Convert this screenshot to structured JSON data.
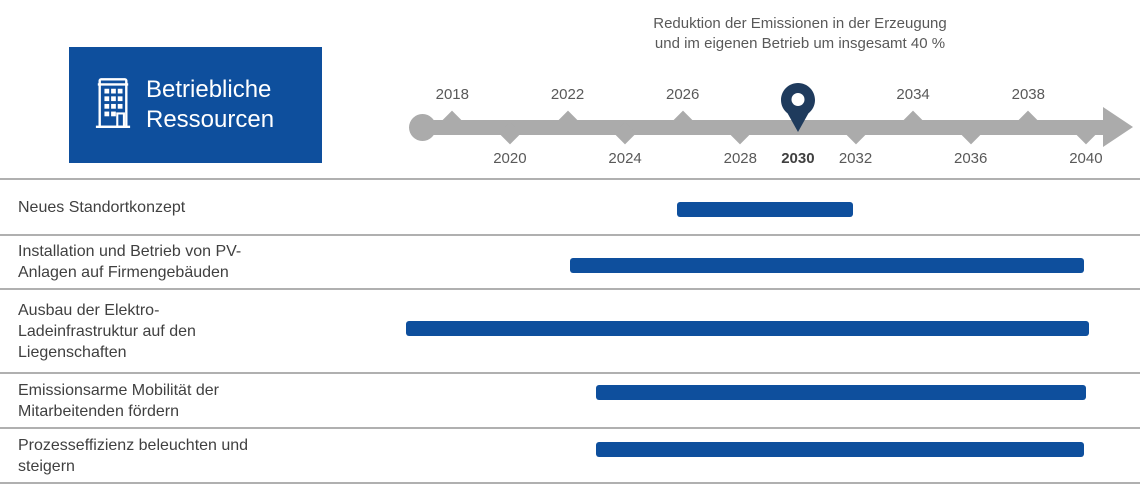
{
  "header": {
    "category_label": "Betriebliche\nRessourcen",
    "annotation": "Reduktion der Emissionen in der Erzeugung\nund im eigenen Betrieb um insgesamt 40 %"
  },
  "colors": {
    "blue": "#0e4f9d",
    "pin_navy": "#1f3b5d",
    "timeline_gray": "#ababab",
    "label_dark": "#404040",
    "year_gray": "#595959",
    "divider_gray": "#b0b0b0",
    "white": "#ffffff"
  },
  "chart_data": {
    "type": "gantt",
    "title": "Betriebliche Ressourcen",
    "annotation": "Reduktion der Emissionen in der Erzeugung und im eigenen Betrieb um insgesamt 40 %",
    "annotation_year": 2030,
    "axis": {
      "start": 2016.4,
      "end": 2041.6,
      "grid": false,
      "ticks": [
        {
          "label": "2018",
          "year": 2018,
          "side": "above"
        },
        {
          "label": "2020",
          "year": 2020,
          "side": "below"
        },
        {
          "label": "2022",
          "year": 2022,
          "side": "above"
        },
        {
          "label": "2024",
          "year": 2024,
          "side": "below"
        },
        {
          "label": "2026",
          "year": 2026,
          "side": "above"
        },
        {
          "label": "2028",
          "year": 2028,
          "side": "below"
        },
        {
          "label": "2030",
          "year": 2030,
          "side": "below",
          "bold": true,
          "pin": true
        },
        {
          "label": "2032",
          "year": 2032,
          "side": "below"
        },
        {
          "label": "2034",
          "year": 2034,
          "side": "above"
        },
        {
          "label": "2036",
          "year": 2036,
          "side": "below"
        },
        {
          "label": "2038",
          "year": 2038,
          "side": "above"
        },
        {
          "label": "2040",
          "year": 2040,
          "side": "below"
        }
      ]
    },
    "tasks": [
      {
        "label": "Neues Standortkonzept",
        "start": 2025.8,
        "end": 2031.9
      },
      {
        "label": "Installation und Betrieb von PV-\nAnlagen auf Firmengebäuden",
        "start": 2022.1,
        "end": 2039.95
      },
      {
        "label": "Ausbau der Elektro-\nLadeinfrastruktur auf den\nLiegenschaften",
        "start": 2016.4,
        "end": 2040.1
      },
      {
        "label": "Emissionsarme Mobilität der\nMitarbeitenden fördern",
        "start": 2023.0,
        "end": 2040.0
      },
      {
        "label": "Prozesseffizienz beleuchten und\nsteigern",
        "start": 2023.0,
        "end": 2039.95
      }
    ]
  }
}
